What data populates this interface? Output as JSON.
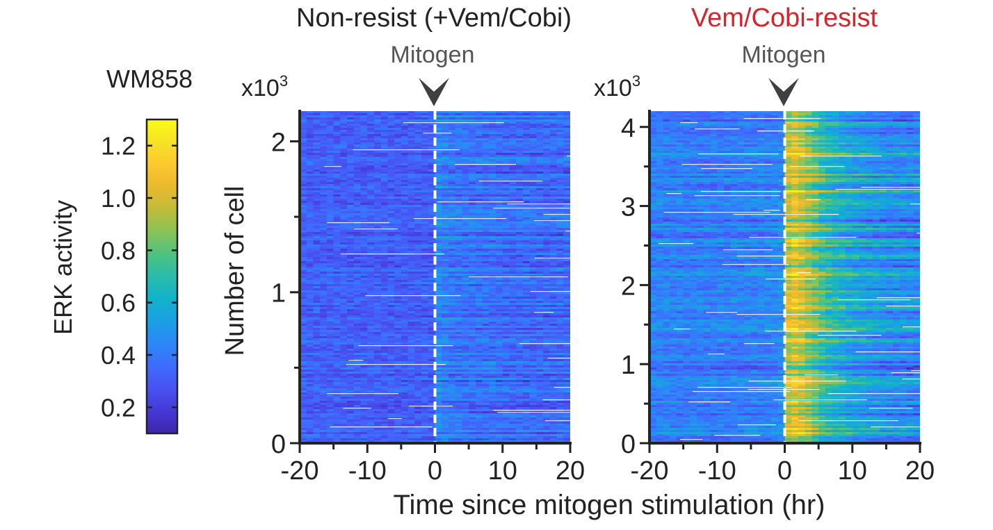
{
  "figure": {
    "cell_line": "WM858",
    "xlabel": "Time since mitogen stimulation (hr)"
  },
  "colorbar": {
    "label": "ERK activity",
    "ticks": [
      "0.2",
      "0.4",
      "0.6",
      "0.8",
      "1.0",
      "1.2"
    ],
    "range": [
      0.1,
      1.3
    ],
    "colormap": [
      "#3e26a8",
      "#4538d7",
      "#4852f1",
      "#3e6cfd",
      "#2c87f8",
      "#1ba0e3",
      "#10b3cc",
      "#29bcaa",
      "#4fc27f",
      "#89c358",
      "#bfbc38",
      "#e9ba2d",
      "#fdc831",
      "#f6e325",
      "#f9fb15"
    ],
    "colors": {
      "axis": "#222222",
      "white_rows": "#ffffff"
    }
  },
  "panels": [
    {
      "title": "Non-resist (+Vem/Cobi)",
      "title_color": "#222222",
      "marker_label": "Mitogen",
      "exponent_label": "x10",
      "exponent_sup": "3",
      "ylabel": "Number of cell"
    },
    {
      "title": "Vem/Cobi-resist",
      "title_color": "#d7232b",
      "marker_label": "Mitogen",
      "exponent_label": "x10",
      "exponent_sup": "3",
      "ylabel": ""
    }
  ],
  "chart_data": [
    {
      "type": "heatmap",
      "title": "Non-resist (+Vem/Cobi)",
      "xlabel": "Time since mitogen stimulation (hr)",
      "ylabel": "Number of cell",
      "xlim": [
        -20,
        20
      ],
      "ylim": [
        0,
        2.2
      ],
      "y_scale": "x10^3 cells",
      "xticks": [
        -20,
        -10,
        0,
        10,
        20
      ],
      "xtick_labels": [
        "-20",
        "-10",
        "0",
        "10",
        "20"
      ],
      "yticks": [
        0,
        1,
        2
      ],
      "ytick_labels": [
        "0",
        "1",
        "2"
      ],
      "mitogen_time": 0,
      "value_range": [
        0.1,
        1.3
      ],
      "n_cells_thousands": 2.2,
      "profile": {
        "time_hr": [
          -20,
          -10,
          -1,
          0,
          0.5,
          1,
          2,
          4,
          6,
          10,
          15,
          20
        ],
        "mean_erk": [
          0.32,
          0.31,
          0.31,
          0.31,
          0.44,
          0.42,
          0.4,
          0.38,
          0.37,
          0.35,
          0.34,
          0.34
        ]
      }
    },
    {
      "type": "heatmap",
      "title": "Vem/Cobi-resist",
      "xlabel": "Time since mitogen stimulation (hr)",
      "ylabel": "",
      "xlim": [
        -20,
        20
      ],
      "ylim": [
        0,
        4.2
      ],
      "y_scale": "x10^3 cells",
      "xticks": [
        -20,
        -10,
        0,
        10,
        20
      ],
      "xtick_labels": [
        "-20",
        "-10",
        "0",
        "10",
        "20"
      ],
      "yticks": [
        0,
        1,
        2,
        3,
        4
      ],
      "ytick_labels": [
        "0",
        "1",
        "2",
        "3",
        "4"
      ],
      "mitogen_time": 0,
      "value_range": [
        0.1,
        1.3
      ],
      "n_cells_thousands": 4.2,
      "profile": {
        "time_hr": [
          -20,
          -10,
          -1,
          0,
          0.5,
          1,
          2,
          4,
          6,
          10,
          15,
          20
        ],
        "mean_erk": [
          0.42,
          0.4,
          0.43,
          0.48,
          0.95,
          1.05,
          1.0,
          0.85,
          0.68,
          0.55,
          0.47,
          0.44
        ]
      }
    }
  ]
}
